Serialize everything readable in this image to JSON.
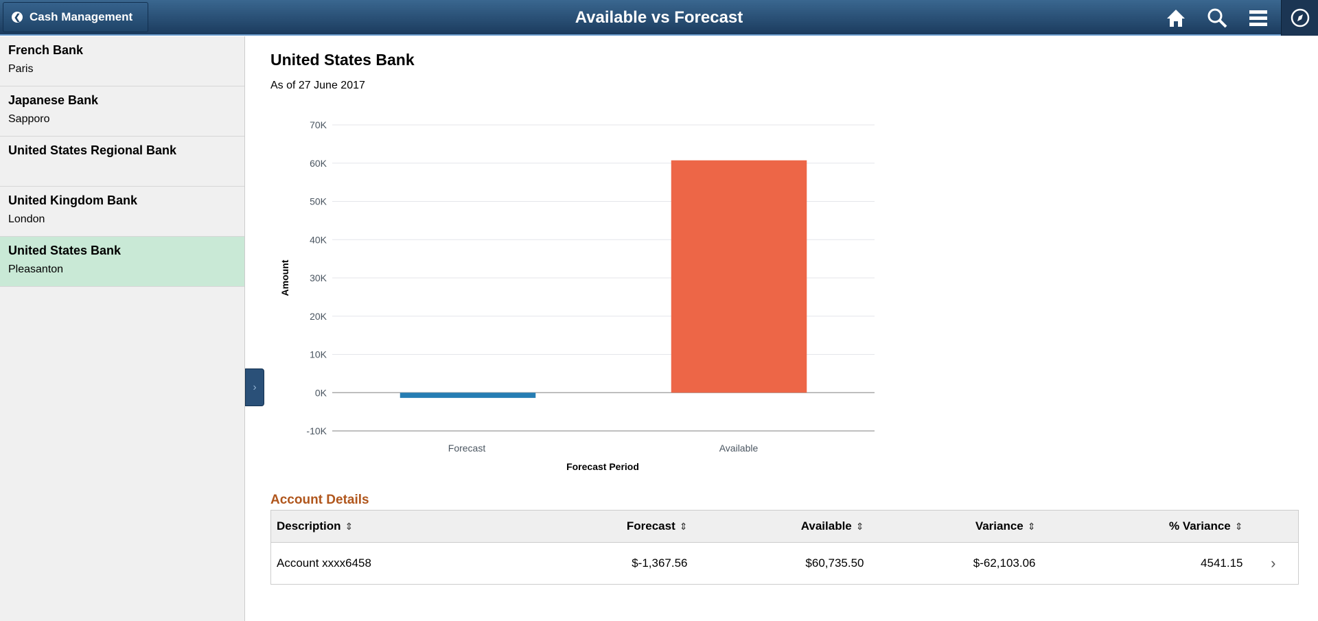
{
  "header": {
    "back_label": "Cash Management",
    "title": "Available vs Forecast",
    "icons": [
      "home-icon",
      "search-icon",
      "menu-icon",
      "navbar-compass-icon"
    ]
  },
  "sidebar": {
    "items": [
      {
        "name": "French Bank",
        "city": "Paris",
        "selected": false
      },
      {
        "name": "Japanese Bank",
        "city": "Sapporo",
        "selected": false
      },
      {
        "name": "United States Regional Bank",
        "city": "",
        "selected": false
      },
      {
        "name": "United Kingdom Bank",
        "city": "London",
        "selected": false
      },
      {
        "name": "United States Bank",
        "city": "Pleasanton",
        "selected": true
      }
    ]
  },
  "main": {
    "title": "United States Bank",
    "as_of": "As of 27 June 2017"
  },
  "chart_data": {
    "type": "bar",
    "categories": [
      "Forecast",
      "Available"
    ],
    "values": [
      -1367.56,
      60735.5
    ],
    "colors": [
      "#267db3",
      "#ed6647"
    ],
    "xlabel": "Forecast Period",
    "ylabel": "Amount",
    "ylim": [
      -10000,
      70000
    ],
    "yticks": [
      "-10K",
      "0K",
      "10K",
      "20K",
      "30K",
      "40K",
      "50K",
      "60K",
      "70K"
    ],
    "grid": true
  },
  "details": {
    "title": "Account Details",
    "columns": [
      "Description",
      "Forecast",
      "Available",
      "Variance",
      "% Variance"
    ],
    "rows": [
      {
        "description": "Account xxxx6458",
        "forecast": "$-1,367.56",
        "available": "$60,735.50",
        "variance": "$-62,103.06",
        "pct_variance": "4541.15"
      }
    ]
  }
}
